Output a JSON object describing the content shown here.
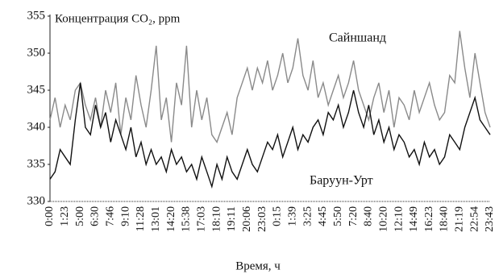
{
  "chart_data": {
    "type": "line",
    "title": "Концентрация CO₂, ppm",
    "x_label": "Время, ч",
    "categories": [
      "0:00",
      null,
      null,
      "1:23",
      null,
      null,
      "5:00",
      null,
      null,
      "6:30",
      null,
      null,
      "7:46",
      null,
      null,
      "9:10",
      null,
      null,
      "11:28",
      null,
      null,
      "13:01",
      null,
      null,
      "14:20",
      null,
      null,
      "15:38",
      null,
      null,
      "17:03",
      null,
      null,
      "18:10",
      null,
      null,
      "19:11",
      null,
      null,
      "20:06",
      null,
      null,
      "23:03",
      null,
      null,
      "0:15",
      null,
      null,
      "1:39",
      null,
      null,
      "3:25",
      null,
      null,
      "4:45",
      null,
      null,
      "5:50",
      null,
      null,
      "7:20",
      null,
      null,
      "8:40",
      null,
      null,
      "10:20",
      null,
      null,
      "12:10",
      null,
      null,
      "14:49",
      null,
      null,
      "16:23",
      null,
      null,
      "18:40",
      null,
      null,
      "21:19",
      null,
      null,
      "22:54",
      null,
      null,
      "23:43"
    ],
    "series": [
      {
        "name": "Сайншанд",
        "color": "#8a8a8a",
        "values": [
          341,
          344,
          340,
          343,
          341,
          345,
          346,
          343,
          341,
          344,
          340,
          345,
          342,
          346,
          339,
          344,
          341,
          347,
          343,
          340,
          345,
          351,
          341,
          344,
          338,
          346,
          343,
          351,
          340,
          345,
          341,
          344,
          339,
          338,
          340,
          342,
          339,
          344,
          346,
          348,
          345,
          348,
          346,
          349,
          345,
          347,
          350,
          346,
          348,
          352,
          347,
          345,
          349,
          344,
          346,
          343,
          345,
          347,
          344,
          346,
          349,
          345,
          343,
          341,
          344,
          346,
          342,
          345,
          340,
          344,
          343,
          341,
          345,
          342,
          344,
          346,
          343,
          341,
          342,
          347,
          346,
          353,
          348,
          344,
          350,
          346,
          342,
          340
        ]
      },
      {
        "name": "Баруун-Урт",
        "color": "#111111",
        "values": [
          333,
          334,
          337,
          336,
          335,
          341,
          346,
          340,
          339,
          343,
          340,
          342,
          338,
          341,
          339,
          337,
          340,
          336,
          338,
          335,
          337,
          335,
          336,
          334,
          337,
          335,
          336,
          334,
          335,
          333,
          336,
          334,
          332,
          335,
          333,
          336,
          334,
          333,
          335,
          337,
          335,
          334,
          336,
          338,
          337,
          339,
          336,
          338,
          340,
          337,
          339,
          338,
          340,
          341,
          339,
          342,
          341,
          343,
          340,
          342,
          345,
          342,
          340,
          343,
          339,
          341,
          338,
          340,
          337,
          339,
          338,
          336,
          337,
          335,
          338,
          336,
          337,
          335,
          336,
          339,
          338,
          337,
          340,
          342,
          344,
          341,
          340,
          339
        ]
      }
    ],
    "ylim": [
      330,
      355
    ],
    "yticks": [
      330,
      335,
      340,
      345,
      350,
      355
    ],
    "grid": false
  }
}
